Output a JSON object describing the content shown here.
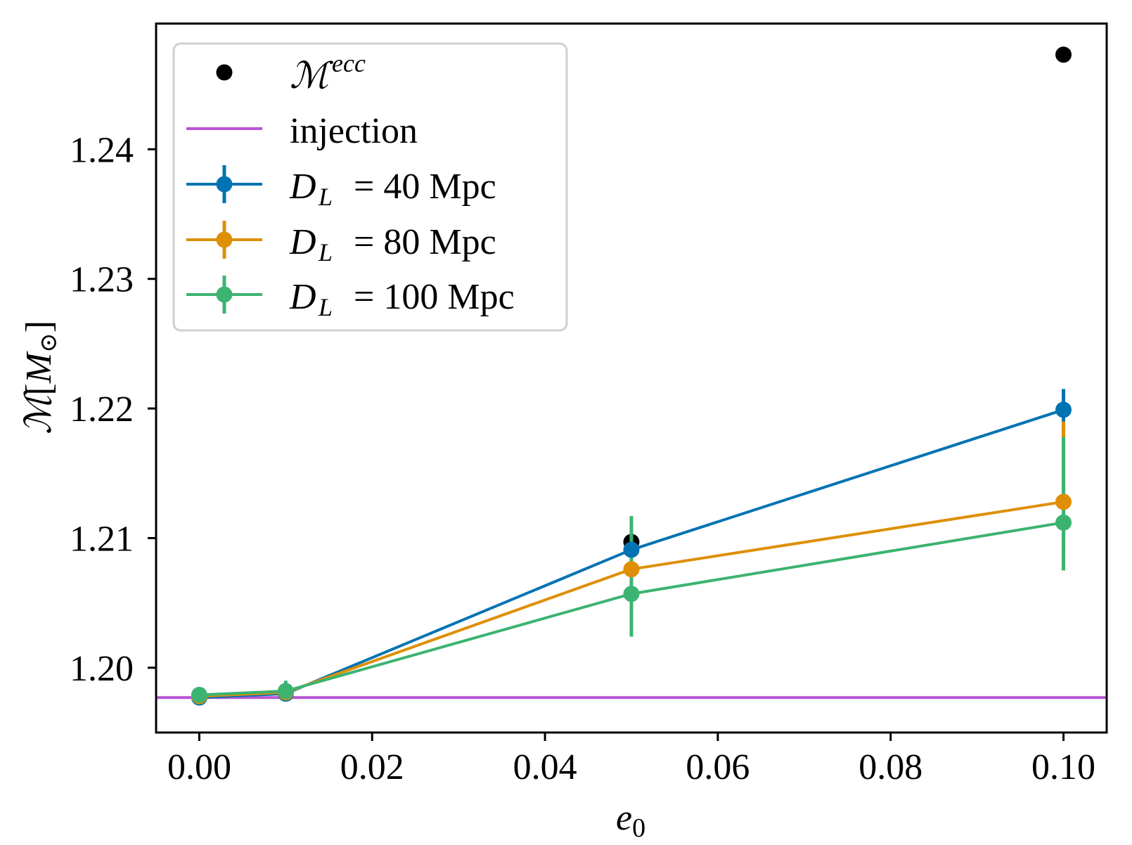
{
  "chart_data": {
    "type": "line",
    "title": "",
    "xlabel": {
      "base": "e",
      "sub": "0"
    },
    "ylabel": {
      "symbol": "ℳ",
      "open": "[",
      "unit": "M",
      "unit_sub": "⊙",
      "close": "]"
    },
    "xlim": [
      -0.005,
      0.105
    ],
    "ylim": [
      1.195,
      1.2497
    ],
    "xticks": [
      0.0,
      0.02,
      0.04,
      0.06,
      0.08,
      0.1
    ],
    "xtick_labels": [
      "0.00",
      "0.02",
      "0.04",
      "0.06",
      "0.08",
      "0.10"
    ],
    "yticks": [
      1.2,
      1.21,
      1.22,
      1.23,
      1.24
    ],
    "ytick_labels": [
      "1.20",
      "1.21",
      "1.22",
      "1.23",
      "1.24"
    ],
    "grid": false,
    "legend_position": "top-left",
    "scatter": {
      "name": "M^ecc",
      "label": {
        "base": "ℳ",
        "sup": "ecc"
      },
      "color": "#000000",
      "x": [
        0.05,
        0.1
      ],
      "y": [
        1.2097,
        1.2473
      ]
    },
    "hline": {
      "name": "injection",
      "label": "injection",
      "color": "#b955d4",
      "y": 1.1977
    },
    "series": [
      {
        "name": "D_L = 40 Mpc",
        "label": {
          "base": "D",
          "sub": "L",
          "rest": "= 40 Mpc"
        },
        "color": "#0173b2",
        "x": [
          0.0,
          0.01,
          0.05,
          0.1
        ],
        "y": [
          1.1977,
          1.198,
          1.2091,
          1.2199
        ],
        "yerr_minus": [
          0.0004,
          0.0004,
          0.001,
          0.0016
        ],
        "yerr_plus": [
          0.0004,
          0.0004,
          0.001,
          0.0016
        ]
      },
      {
        "name": "D_L = 80 Mpc",
        "label": {
          "base": "D",
          "sub": "L",
          "rest": "= 80 Mpc"
        },
        "color": "#de8f05",
        "x": [
          0.0,
          0.01,
          0.05,
          0.1
        ],
        "y": [
          1.1978,
          1.1981,
          1.2076,
          1.2128
        ],
        "yerr_minus": [
          0.0005,
          0.0006,
          0.002,
          0.0036
        ],
        "yerr_plus": [
          0.0005,
          0.0006,
          0.0025,
          0.0062
        ]
      },
      {
        "name": "D_L = 100 Mpc",
        "label": {
          "base": "D",
          "sub": "L",
          "rest": "= 100 Mpc"
        },
        "color": "#3cb371",
        "x": [
          0.0,
          0.01,
          0.05,
          0.1
        ],
        "y": [
          1.1979,
          1.1982,
          1.2057,
          1.2112
        ],
        "yerr_minus": [
          0.0006,
          0.0008,
          0.0033,
          0.0037
        ],
        "yerr_plus": [
          0.0006,
          0.0008,
          0.006,
          0.0066
        ]
      }
    ]
  }
}
